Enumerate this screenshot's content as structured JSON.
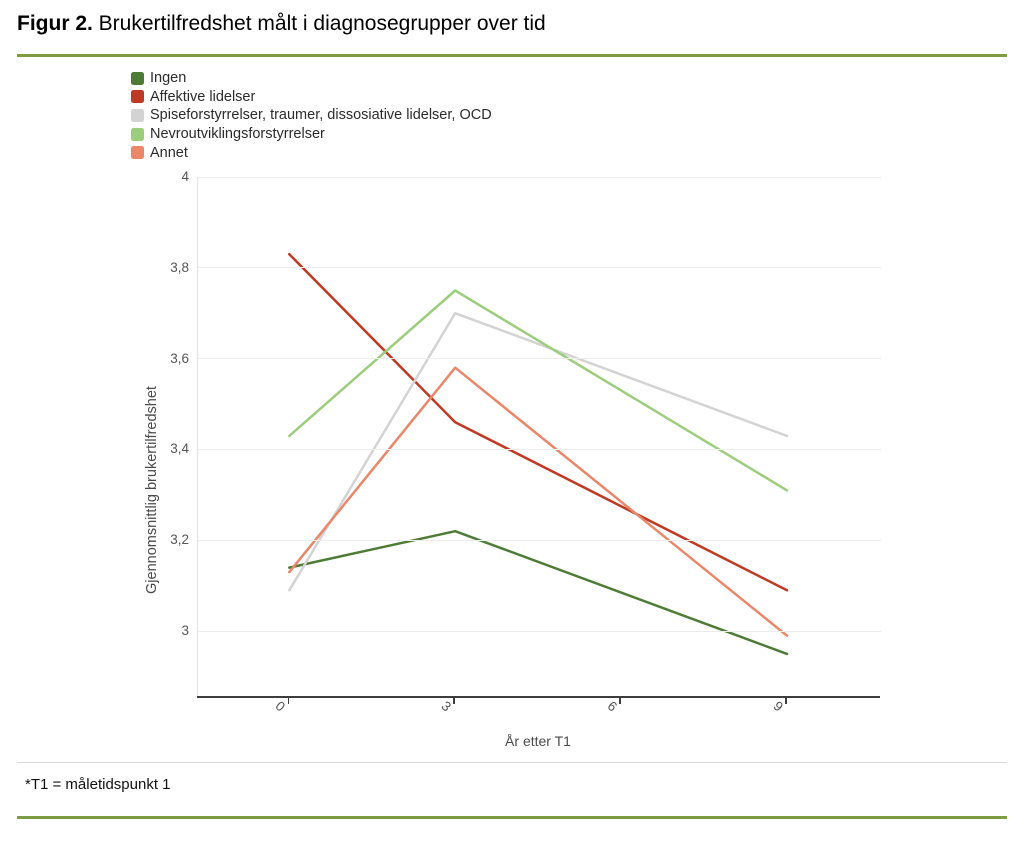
{
  "figure": {
    "title_prefix": "Figur 2.",
    "title_rest": " Brukertilfredshet målt i diagnosegrupper over tid",
    "footnote": "*T1 = måletidspunkt 1"
  },
  "colors": {
    "accent_rule": "#7d9c44",
    "divider": "#d9d9d9",
    "axis_line": "#3d3d3d",
    "gridline": "#ededed",
    "tick_text": "#555555",
    "axis_title_text": "#4a4a4a",
    "legend_text": "#2b2b2b"
  },
  "chart_data": {
    "type": "line",
    "title": "Figur 2. Brukertilfredshet målt i diagnosegrupper over tid",
    "xlabel": "År etter T1",
    "ylabel": "Gjennomsnittlig brukertilfredshet",
    "x": [
      0,
      3,
      9
    ],
    "x_ticks": [
      "0",
      "3",
      "6",
      "9"
    ],
    "x_tick_values": [
      0,
      3,
      6,
      9
    ],
    "y_ticks": [
      "4",
      "3,8",
      "3,6",
      "3,4",
      "3,2",
      "3"
    ],
    "y_tick_values": [
      4,
      3.8,
      3.6,
      3.4,
      3.2,
      3
    ],
    "xlim": [
      -1.65,
      10.7
    ],
    "ylim": [
      2.855,
      4
    ],
    "grid": true,
    "legend_position": "top-left",
    "line_width": 2.5,
    "series": [
      {
        "name": "Ingen",
        "color": "#4e7b35",
        "values": [
          3.14,
          3.22,
          2.95
        ]
      },
      {
        "name": "Affektive lidelser",
        "color": "#bf3a24",
        "values": [
          3.83,
          3.46,
          3.09
        ]
      },
      {
        "name": "Spiseforstyrrelser, traumer, dissosiative lidelser, OCD",
        "color": "#d3d3d3",
        "values": [
          3.09,
          3.7,
          3.43
        ]
      },
      {
        "name": "Nevroutviklingsforstyrrelser",
        "color": "#9ccd7c",
        "values": [
          3.43,
          3.75,
          3.31
        ]
      },
      {
        "name": "Annet",
        "color": "#e98768",
        "values": [
          3.13,
          3.58,
          2.99
        ]
      }
    ]
  }
}
